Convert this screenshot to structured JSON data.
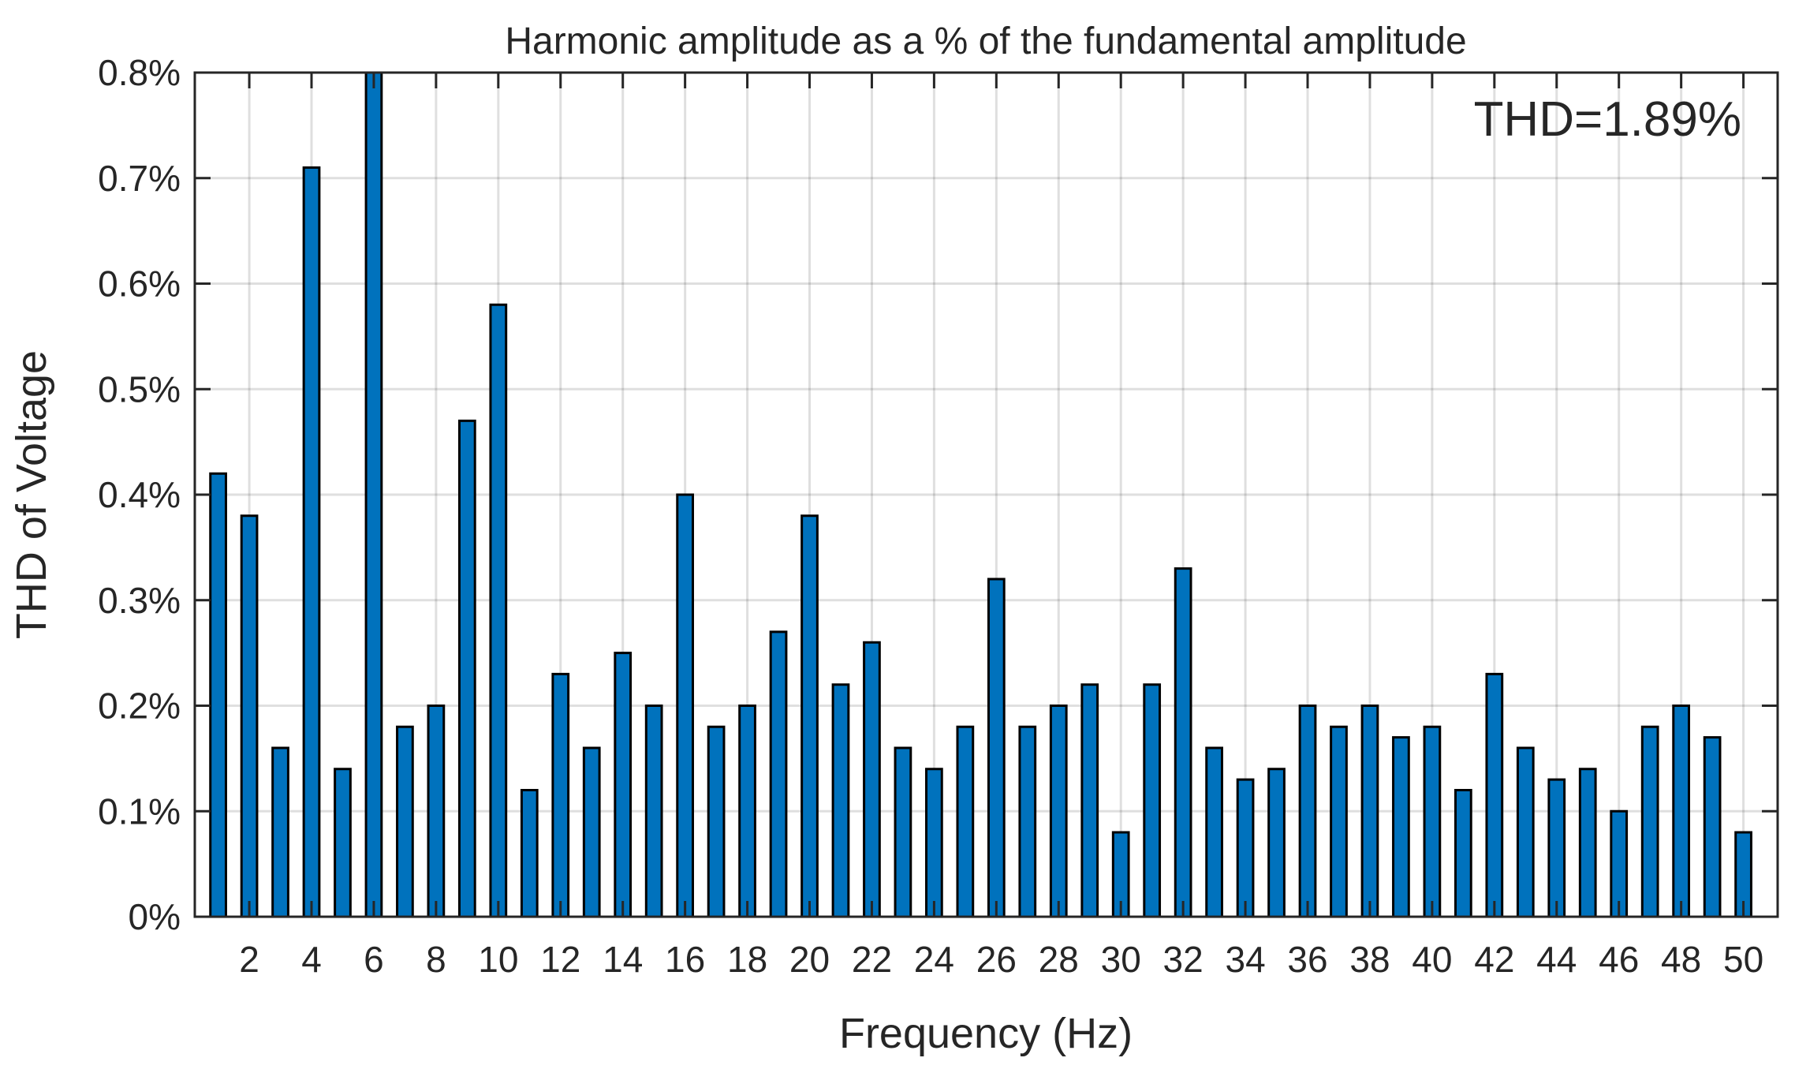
{
  "chart_data": {
    "type": "bar",
    "title": "Harmonic amplitude as a % of the fundamental amplitude",
    "xlabel": "Frequency (Hz)",
    "ylabel": "THD of Voltage",
    "annotation": "THD=1.89%",
    "x": [
      1,
      2,
      3,
      4,
      5,
      6,
      7,
      8,
      9,
      10,
      11,
      12,
      13,
      14,
      15,
      16,
      17,
      18,
      19,
      20,
      21,
      22,
      23,
      24,
      25,
      26,
      27,
      28,
      29,
      30,
      31,
      32,
      33,
      34,
      35,
      36,
      37,
      38,
      39,
      40,
      41,
      42,
      43,
      44,
      45,
      46,
      47,
      48,
      49,
      50
    ],
    "values": [
      0.42,
      0.38,
      0.16,
      0.71,
      0.14,
      0.8,
      0.18,
      0.2,
      0.47,
      0.58,
      0.12,
      0.23,
      0.16,
      0.25,
      0.2,
      0.4,
      0.18,
      0.2,
      0.27,
      0.38,
      0.22,
      0.26,
      0.16,
      0.14,
      0.18,
      0.32,
      0.18,
      0.2,
      0.22,
      0.08,
      0.22,
      0.33,
      0.16,
      0.13,
      0.14,
      0.2,
      0.18,
      0.2,
      0.17,
      0.18,
      0.12,
      0.23,
      0.16,
      0.13,
      0.14,
      0.1,
      0.18,
      0.2,
      0.17,
      0.08
    ],
    "xticks": [
      2,
      4,
      6,
      8,
      10,
      12,
      14,
      16,
      18,
      20,
      22,
      24,
      26,
      28,
      30,
      32,
      34,
      36,
      38,
      40,
      42,
      44,
      46,
      48,
      50
    ],
    "xlim": [
      0.25,
      51.1
    ],
    "ylim": [
      0,
      0.8
    ],
    "yticks": [
      0,
      0.1,
      0.2,
      0.3,
      0.4,
      0.5,
      0.6,
      0.7,
      0.8
    ],
    "ytick_labels": [
      "0%",
      "0.1%",
      "0.2%",
      "0.3%",
      "0.4%",
      "0.5%",
      "0.6%",
      "0.7%",
      "0.8%"
    ],
    "bar_width": 0.5,
    "bar_color": "#0072BD",
    "bar_edge_color": "#000000",
    "grid": true,
    "annotation_position": "top-right"
  }
}
